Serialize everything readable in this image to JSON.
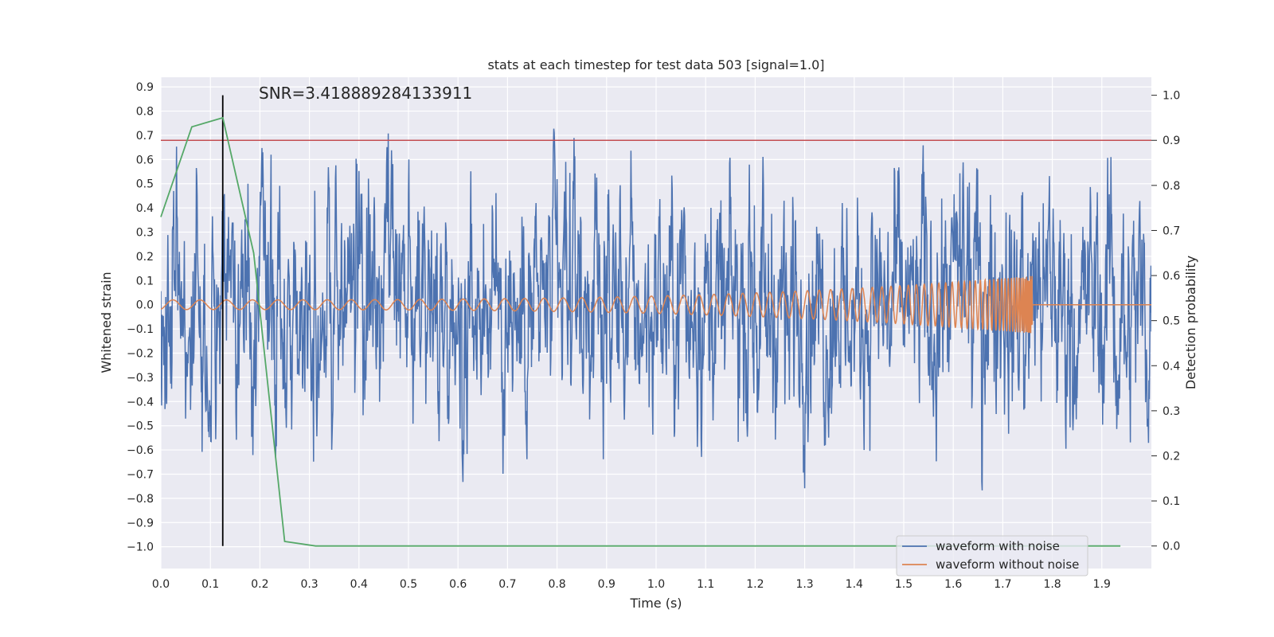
{
  "chart_data": {
    "type": "line",
    "title": "stats at each timestep for test data 503 [signal=1.0]",
    "annotation": "SNR=3.418889284133911",
    "xlabel": "Time (s)",
    "ylabel": "Whitened strain",
    "ylabel_right": "Detection probability",
    "xlim": [
      0.0,
      2.0
    ],
    "ylim": [
      -1.09,
      0.94
    ],
    "ylim_right": [
      -0.05,
      1.04
    ],
    "x_ticks": [
      "0.0",
      "0.1",
      "0.2",
      "0.3",
      "0.4",
      "0.5",
      "0.6",
      "0.7",
      "0.8",
      "0.9",
      "1.0",
      "1.1",
      "1.2",
      "1.3",
      "1.4",
      "1.5",
      "1.6",
      "1.7",
      "1.8",
      "1.9"
    ],
    "y_ticks": [
      "0.9",
      "0.8",
      "0.7",
      "0.6",
      "0.5",
      "0.4",
      "0.3",
      "0.2",
      "0.1",
      "0.0",
      "−0.1",
      "−0.2",
      "−0.3",
      "−0.4",
      "−0.5",
      "−0.6",
      "−0.7",
      "−0.8",
      "−0.9",
      "−1.0"
    ],
    "y_ticks_right": [
      "1.0",
      "0.9",
      "0.8",
      "0.7",
      "0.6",
      "0.5",
      "0.4",
      "0.3",
      "0.2",
      "0.1",
      "0.0"
    ],
    "grid": true,
    "legend_position": "lower-right",
    "series": [
      {
        "name": "waveform with noise",
        "axis": "left",
        "color": "#4c72b0",
        "generator": "noise",
        "amplitude_range": [
          -1.0,
          0.84
        ],
        "duration": 2.0
      },
      {
        "name": "waveform without noise",
        "axis": "left",
        "color": "#dd8452",
        "generator": "chirp",
        "x_end": 1.76,
        "amplitude_start": 0.02,
        "amplitude_end": 0.12,
        "after_end_value": 0.0,
        "duration": 2.0
      },
      {
        "axis": "right",
        "color": "#55a868",
        "x": [
          0.0,
          0.0625,
          0.125,
          0.1875,
          0.25,
          0.3125,
          0.375,
          0.4375,
          0.5,
          0.5625,
          0.625,
          0.6875,
          0.75,
          0.8125,
          0.875,
          0.9375,
          1.0,
          1.0625,
          1.125,
          1.1875,
          1.25,
          1.3125,
          1.375,
          1.4375,
          1.5,
          1.5625,
          1.625,
          1.6875,
          1.75,
          1.8125,
          1.875,
          1.9375
        ],
        "y": [
          0.73,
          0.93,
          0.95,
          0.65,
          0.01,
          0.0,
          0.0,
          0.0,
          0.0,
          0.0,
          0.0,
          0.0,
          0.0,
          0.0,
          0.0,
          0.0,
          0.0,
          0.0,
          0.0,
          0.0,
          0.0,
          0.0,
          0.0,
          0.0,
          0.0,
          0.0,
          0.0,
          0.0,
          0.0,
          0.0,
          0.0,
          0.0
        ]
      }
    ],
    "hlines": [
      {
        "axis": "right",
        "y": 0.9,
        "color": "#c44e52"
      }
    ],
    "vlines": [
      {
        "x": 0.125,
        "y_range_right": [
          0.0,
          1.0
        ],
        "color": "#000000"
      }
    ],
    "colors": {
      "plot_background": "#eaeaf2",
      "grid": "#ffffff",
      "text": "#262626",
      "threshold": "#c44e52",
      "marker_line": "#000000",
      "probability": "#55a868",
      "noise": "#4c72b0",
      "clean": "#dd8452"
    }
  }
}
